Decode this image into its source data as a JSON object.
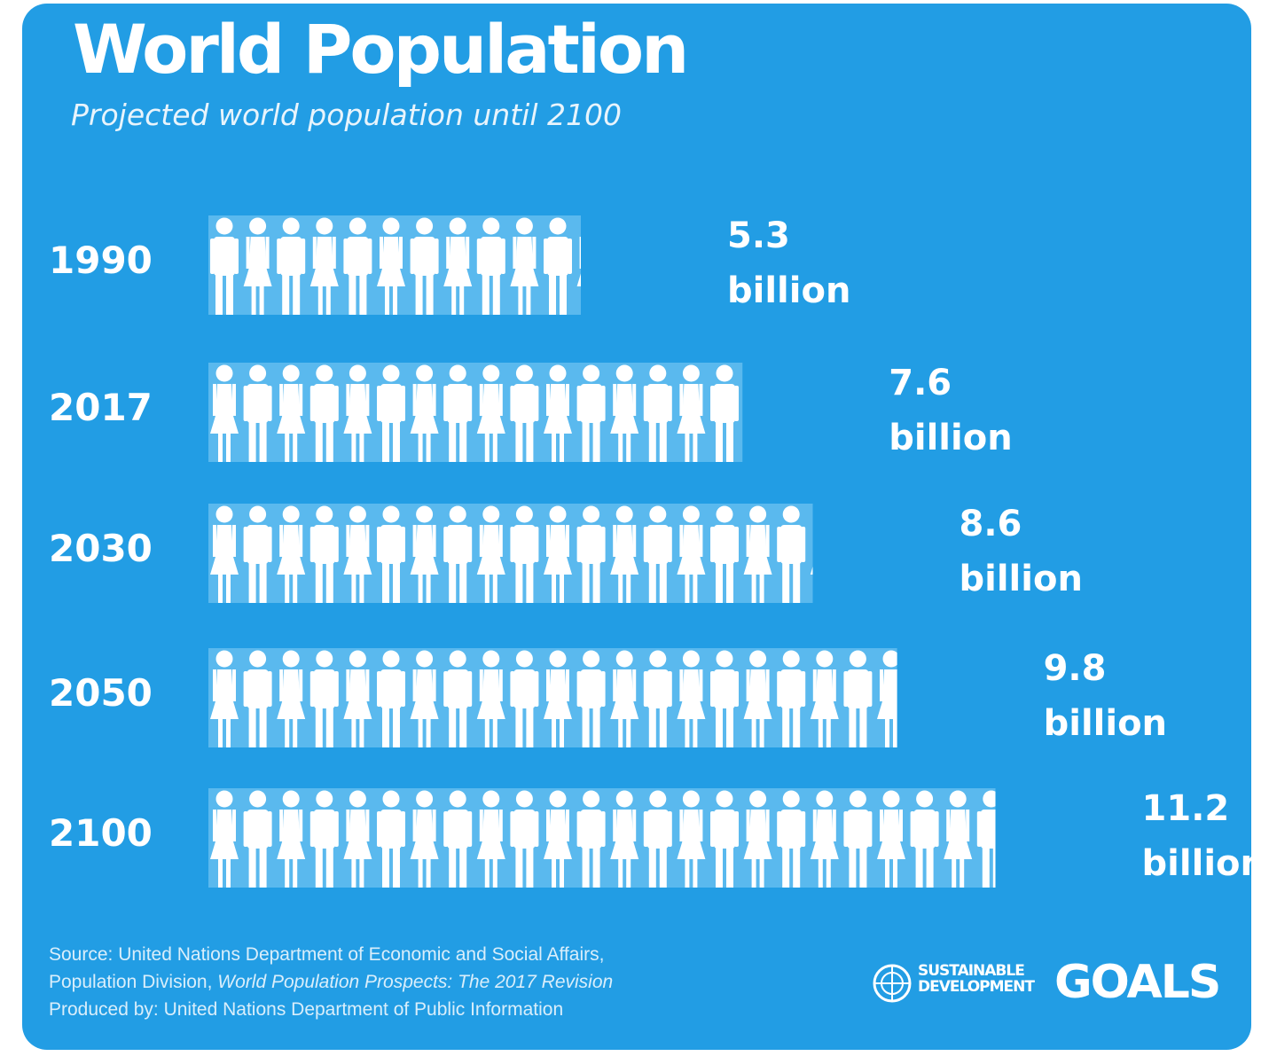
{
  "title": "World Population",
  "subtitle": "Projected world population until 2100",
  "chart_data": {
    "type": "bar",
    "categories": [
      "1990",
      "2017",
      "2030",
      "2050",
      "2100"
    ],
    "values": [
      5.3,
      7.6,
      8.6,
      9.8,
      11.2
    ],
    "value_labels": [
      [
        "5.3",
        "billion"
      ],
      [
        "7.6",
        "billion"
      ],
      [
        "8.6",
        "billion"
      ],
      [
        "9.8",
        "billion"
      ],
      [
        "11.2",
        "billion"
      ]
    ],
    "unit": "billion",
    "icon": "person-figure-icon",
    "icon_count": [
      11,
      14,
      17,
      20,
      23
    ]
  },
  "source": {
    "line1": "Source: United Nations Department of Economic and Social Affairs,",
    "line2_prefix": "Population Division, ",
    "line2_italic": "World Population Prospects: The 2017 Revision",
    "line3": "Produced by: United Nations Department of Public Information"
  },
  "logo": {
    "line1": "SUSTAINABLE",
    "line2": "DEVELOPMENT",
    "goals": "GOALS"
  },
  "colors": {
    "background": "#229de4",
    "bar_band": "#5ab9ee",
    "text": "#ffffff"
  }
}
